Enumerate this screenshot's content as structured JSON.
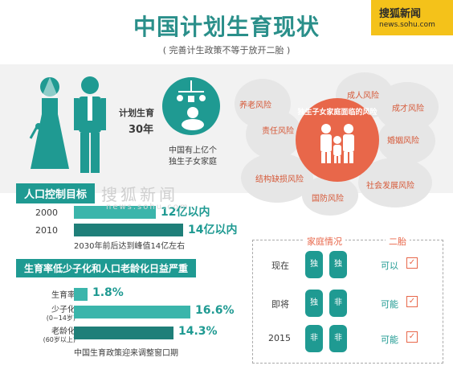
{
  "header": {
    "title": "中国计划生育现状",
    "subtitle": "( 完善计生政策不等于放开二胎 )",
    "logo_cn": "搜狐新闻",
    "logo_url": "news.sohu.com"
  },
  "family_plan": {
    "label": "计划生育",
    "years": "30年",
    "note_line1": "中国有上亿个",
    "note_line2": "独生子女家庭"
  },
  "risks": {
    "center": "独生子女家庭面临的风险",
    "items": [
      "养老风险",
      "成人风险",
      "成才风险",
      "责任风险",
      "婚姻风险",
      "结构缺损风险",
      "社会发展风险",
      "国防风险"
    ]
  },
  "population": {
    "heading": "人口控制目标",
    "rows": [
      {
        "year": "2000",
        "value": "12亿以内",
        "fraction": 0.6
      },
      {
        "year": "2010",
        "value": "14亿以内",
        "fraction": 0.8
      }
    ],
    "note": "2030年前后达到峰值14亿左右"
  },
  "fertility": {
    "heading": "生育率低少子化和人口老龄化日益严重",
    "rows": [
      {
        "label": "生育率",
        "sub": "",
        "value": "1.8%",
        "fraction": 0.1
      },
      {
        "label": "少子化",
        "sub": "(0~14岁)",
        "value": "16.6%",
        "fraction": 0.85
      },
      {
        "label": "老龄化",
        "sub": "(60岁以上)",
        "value": "14.3%",
        "fraction": 0.73
      }
    ],
    "note": "中国生育政策迎来调整窗口期"
  },
  "family_table": {
    "col1": "家庭情况",
    "col2": "二胎",
    "rows": [
      {
        "period": "现在",
        "a": "独",
        "b": "独",
        "status": "可以"
      },
      {
        "period": "即将",
        "a": "独",
        "b": "非",
        "status": "可能"
      },
      {
        "period": "2015",
        "a": "非",
        "b": "非",
        "status": "可能"
      }
    ]
  },
  "watermark": {
    "line1": "搜狐新闻",
    "line2": "news.sohu.com"
  },
  "colors": {
    "accent": "#1f9a92",
    "risk": "#e8674a",
    "logo": "#f4c21a"
  }
}
